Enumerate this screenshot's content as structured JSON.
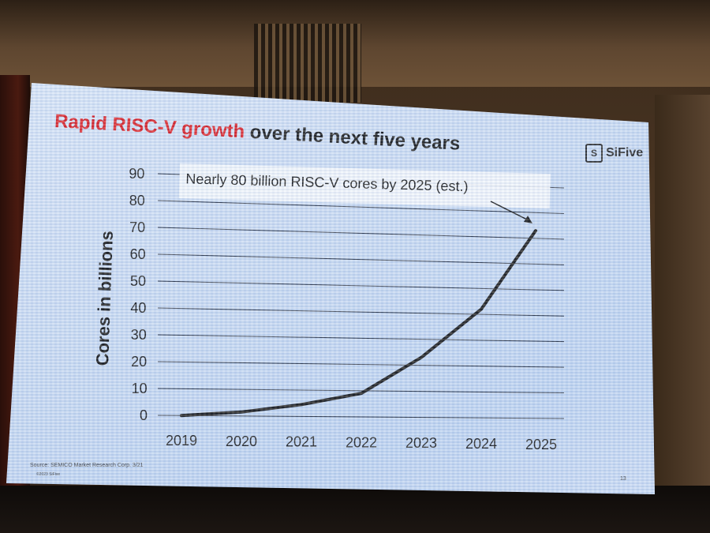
{
  "slide": {
    "title_highlight": "Rapid RISC-V growth",
    "title_rest": " over the next five years",
    "logo_text": "SiFive",
    "source": "Source: SEMICO Market Research Corp. 3/21",
    "copyright": "©2023 SiFive",
    "page_number": "13"
  },
  "colors": {
    "title_highlight": "#d8161b",
    "line": "#111111",
    "grid": "#222a3a"
  },
  "chart_data": {
    "type": "line",
    "title": "",
    "xlabel": "",
    "ylabel": "Cores in billions",
    "categories": [
      "2019",
      "2020",
      "2021",
      "2022",
      "2023",
      "2024",
      "2025"
    ],
    "series": [
      {
        "values": [
          0,
          1.5,
          4.5,
          9,
          23,
          42,
          73
        ]
      }
    ],
    "ylim": [
      0,
      90
    ],
    "yticks": [
      "0",
      "10",
      "20",
      "30",
      "40",
      "50",
      "60",
      "70",
      "80",
      "90"
    ],
    "grid": true,
    "annotation": "Nearly 80 billion RISC-V cores by 2025 (est.)"
  }
}
